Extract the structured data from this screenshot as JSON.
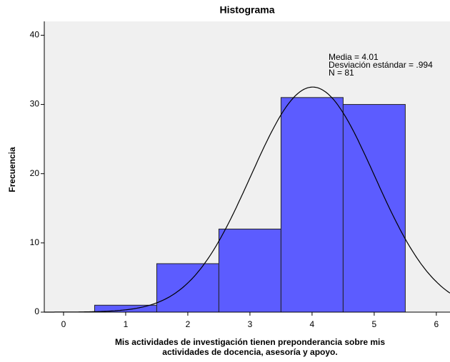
{
  "chart_data": {
    "type": "histogram",
    "title": "Histograma",
    "xlabel": [
      "Mis actividades de investigación tienen preponderancia sobre mis",
      "actividades de docencia, asesoría y apoyo."
    ],
    "ylabel": "Frecuencia",
    "bins": [
      0.5,
      1.5,
      2.5,
      3.5,
      4.5,
      5.5
    ],
    "values": [
      1,
      7,
      12,
      31,
      30
    ],
    "color": "#5c5cff",
    "xlim": [
      -0.31,
      6.22
    ],
    "xticks": [
      0,
      1,
      2,
      3,
      4,
      5,
      6
    ],
    "ylim": [
      0,
      42
    ],
    "yticks": [
      0,
      10,
      20,
      30,
      40
    ],
    "stats": {
      "mean": {
        "value": 4.01,
        "label": "Media = 4.01"
      },
      "sd": {
        "value": 0.994,
        "label": "Desviación estándar = .994"
      },
      "n": {
        "value": 81,
        "label": "N = 81"
      }
    },
    "normal_curve": true
  }
}
